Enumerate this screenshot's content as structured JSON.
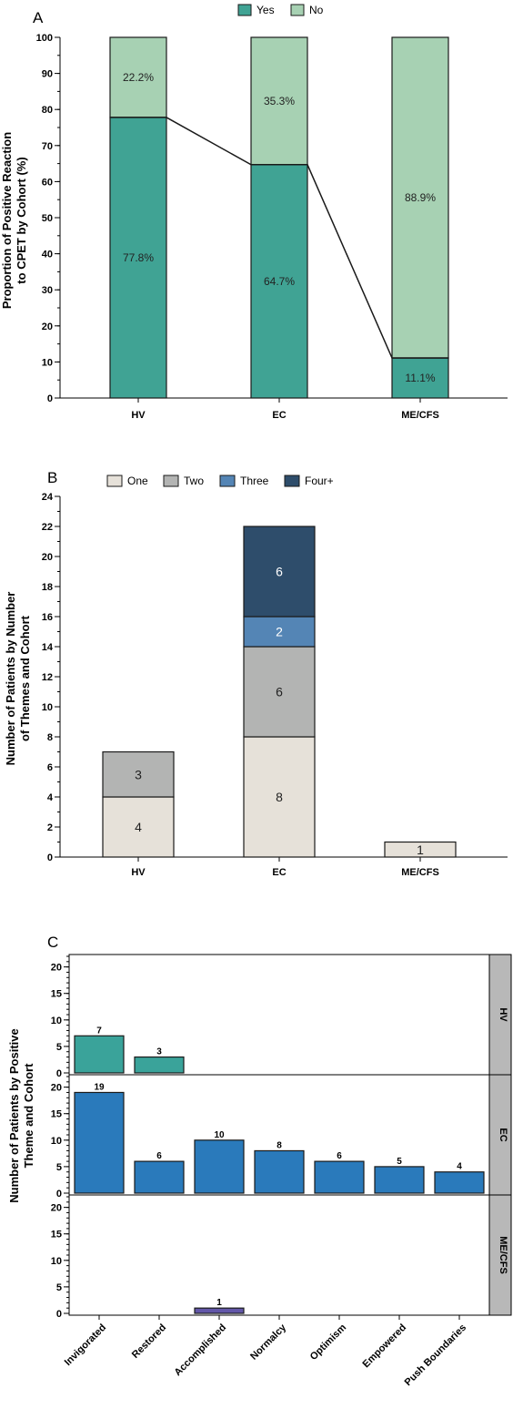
{
  "chart_data": [
    {
      "panel": "A",
      "type": "bar",
      "stacked": true,
      "ylabel": "Proportion of Positive Reaction to CPET by Cohort (%)",
      "ylabel_lines": [
        "Proportion of Positive Reaction",
        "to CPET by Cohort (%)"
      ],
      "categories": [
        "HV",
        "EC",
        "ME/CFS"
      ],
      "ylim": [
        0,
        100
      ],
      "yticks": [
        0,
        10,
        20,
        30,
        40,
        50,
        60,
        70,
        80,
        90,
        100
      ],
      "legend": {
        "placement": "top"
      },
      "series": [
        {
          "name": "Yes",
          "values": [
            77.8,
            64.7,
            11.1
          ],
          "labels": [
            "77.8%",
            "64.7%",
            "11.1%"
          ],
          "color": "#40a394"
        },
        {
          "name": "No",
          "values": [
            22.2,
            35.3,
            88.9
          ],
          "labels": [
            "22.2%",
            "35.3%",
            "88.9%"
          ],
          "color": "#a7d1b3"
        }
      ],
      "connector_line": true
    },
    {
      "panel": "B",
      "type": "bar",
      "stacked": true,
      "ylabel": "Number of Patients by Number of Themes and Cohort",
      "ylabel_lines": [
        "Number of Patients by Number",
        "of Themes and Cohort"
      ],
      "categories": [
        "HV",
        "EC",
        "ME/CFS"
      ],
      "ylim": [
        0,
        24
      ],
      "yticks": [
        0,
        2,
        4,
        6,
        8,
        10,
        12,
        14,
        16,
        18,
        20,
        22,
        24
      ],
      "legend": {
        "placement": "top"
      },
      "series": [
        {
          "name": "One",
          "values": [
            4,
            8,
            1
          ],
          "color": "#e6e1d9",
          "text_color": "#222222"
        },
        {
          "name": "Two",
          "values": [
            3,
            6,
            0
          ],
          "color": "#b3b4b3",
          "text_color": "#222222"
        },
        {
          "name": "Three",
          "values": [
            0,
            2,
            0
          ],
          "color": "#5485b5",
          "text_color": "#ffffff"
        },
        {
          "name": "Four+",
          "values": [
            0,
            6,
            0
          ],
          "color": "#2e4d6b",
          "text_color": "#ffffff"
        }
      ]
    },
    {
      "panel": "C",
      "type": "bar",
      "faceted": true,
      "ylabel": "Number of Patients by Positive Theme and Cohort",
      "ylabel_lines": [
        "Number of Patients by Positive",
        "Theme and Cohort"
      ],
      "categories": [
        "Invigorated",
        "Restored",
        "Accomplished",
        "Normalcy",
        "Optimism",
        "Empowered",
        "Push Boundaries"
      ],
      "ylim": [
        0,
        22
      ],
      "yticks": [
        0,
        5,
        10,
        15,
        20
      ],
      "facets": [
        {
          "name": "HV",
          "color": "#3aa39a",
          "values": [
            7,
            3,
            null,
            null,
            null,
            null,
            null
          ]
        },
        {
          "name": "EC",
          "color": "#2a7abb",
          "values": [
            19,
            6,
            10,
            8,
            6,
            5,
            4
          ]
        },
        {
          "name": "ME/CFS",
          "color": "#6257a8",
          "values": [
            null,
            null,
            1,
            null,
            null,
            null,
            null
          ]
        }
      ]
    }
  ]
}
